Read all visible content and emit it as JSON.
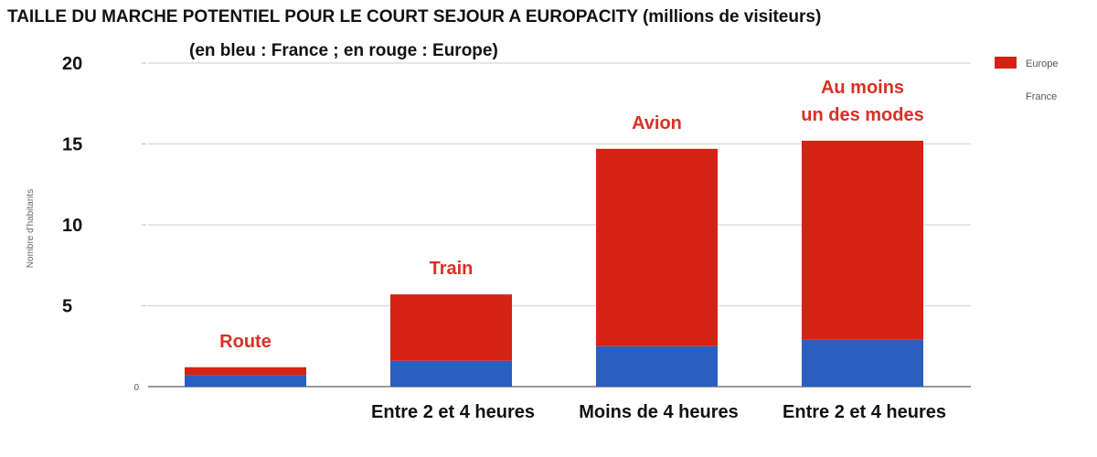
{
  "title": "TAILLE DU MARCHE POTENTIEL POUR LE COURT SEJOUR A EUROPACITY   (millions de visiteurs)",
  "subtitle": "(en bleu : France  ; en rouge : Europe)",
  "chart_data": {
    "type": "bar",
    "stacked": true,
    "ylabel": "Nombre d'habitants",
    "ylim": [
      0,
      20
    ],
    "yticks_major": [
      5,
      10,
      15,
      20
    ],
    "ytick_minor_zero": "0",
    "grid": true,
    "legend_position": "top-right",
    "categories": [
      "Route",
      "Train",
      "Avion",
      "Au moins un des modes"
    ],
    "mode_labels": [
      [
        "Route"
      ],
      [
        "Train"
      ],
      [
        "Avion"
      ],
      [
        "Au moins",
        "un des modes"
      ]
    ],
    "category_labels": [
      "",
      "Entre 2 et 4 heures",
      "Moins de 4 heures",
      "Entre 2 et 4 heures"
    ],
    "series": [
      {
        "name": "France",
        "color": "#2a5ec0",
        "values": [
          0.7,
          1.6,
          2.5,
          2.9
        ]
      },
      {
        "name": "Europe",
        "color": "#d42214",
        "values": [
          0.5,
          4.1,
          12.2,
          12.3
        ]
      }
    ]
  }
}
